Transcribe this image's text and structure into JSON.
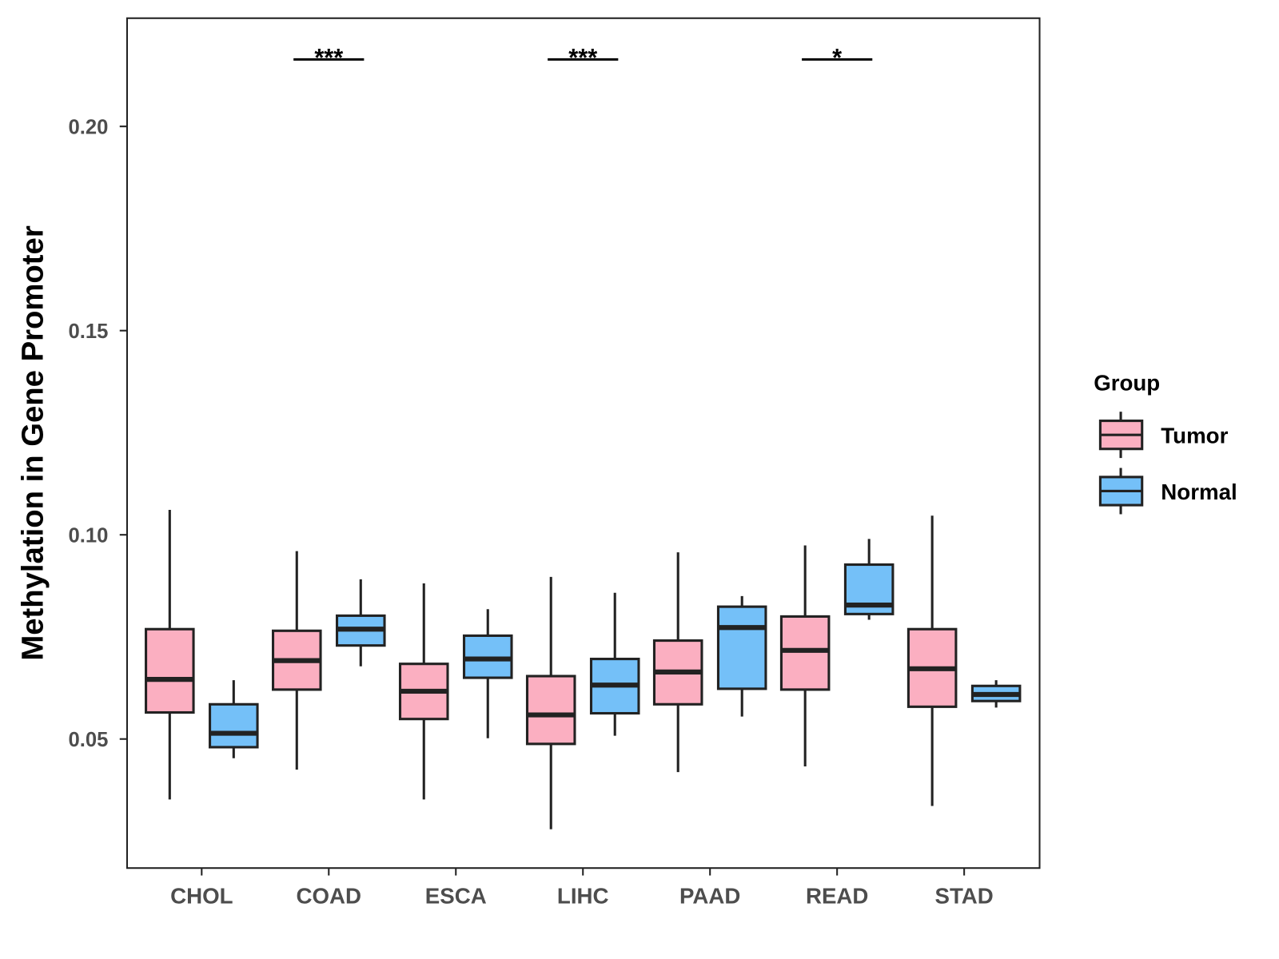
{
  "chart_data": {
    "type": "box",
    "title": "",
    "xlabel": "",
    "ylabel": "Methylation in Gene Promoter",
    "ylim": [
      0.0184,
      0.2265
    ],
    "yticks": [
      0.05,
      0.1,
      0.15,
      0.2
    ],
    "ytick_labels": [
      "0.05",
      "0.10",
      "0.15",
      "0.20"
    ],
    "categories": [
      "CHOL",
      "COAD",
      "ESCA",
      "LIHC",
      "PAAD",
      "READ",
      "STAD"
    ],
    "legend": {
      "title": "Group",
      "placement": "right",
      "entries": [
        "Tumor",
        "Normal"
      ]
    },
    "colors": {
      "Tumor": "#FBAFC1",
      "Normal": "#74C0F8"
    },
    "series": [
      {
        "name": "Tumor",
        "boxes": [
          {
            "min": 0.0352,
            "q1": 0.0565,
            "median": 0.0646,
            "q3": 0.0769,
            "max": 0.1061
          },
          {
            "min": 0.0425,
            "q1": 0.0621,
            "median": 0.0692,
            "q3": 0.0765,
            "max": 0.096
          },
          {
            "min": 0.0352,
            "q1": 0.0549,
            "median": 0.0617,
            "q3": 0.0684,
            "max": 0.0881
          },
          {
            "min": 0.0279,
            "q1": 0.0488,
            "median": 0.0559,
            "q3": 0.0654,
            "max": 0.0897
          },
          {
            "min": 0.0419,
            "q1": 0.0585,
            "median": 0.0664,
            "q3": 0.0741,
            "max": 0.0957
          },
          {
            "min": 0.0433,
            "q1": 0.0621,
            "median": 0.0717,
            "q3": 0.08,
            "max": 0.0974
          },
          {
            "min": 0.0336,
            "q1": 0.0579,
            "median": 0.0672,
            "q3": 0.0769,
            "max": 0.1047
          }
        ]
      },
      {
        "name": "Normal",
        "boxes": [
          {
            "min": 0.0453,
            "q1": 0.048,
            "median": 0.0514,
            "q3": 0.0585,
            "max": 0.0644
          },
          {
            "min": 0.0678,
            "q1": 0.0729,
            "median": 0.0769,
            "q3": 0.0802,
            "max": 0.0891
          },
          {
            "min": 0.0502,
            "q1": 0.065,
            "median": 0.0696,
            "q3": 0.0753,
            "max": 0.0818
          },
          {
            "min": 0.0508,
            "q1": 0.0563,
            "median": 0.0632,
            "q3": 0.0696,
            "max": 0.0858
          },
          {
            "min": 0.0555,
            "q1": 0.0623,
            "median": 0.0773,
            "q3": 0.0824,
            "max": 0.085
          },
          {
            "min": 0.0792,
            "q1": 0.0806,
            "median": 0.0828,
            "q3": 0.0927,
            "max": 0.099
          },
          {
            "min": 0.0577,
            "q1": 0.0593,
            "median": 0.0609,
            "q3": 0.063,
            "max": 0.0644
          }
        ]
      }
    ],
    "annotations": [
      {
        "category": "COAD",
        "label": "***",
        "y": 0.2164
      },
      {
        "category": "LIHC",
        "label": "***",
        "y": 0.2164
      },
      {
        "category": "READ",
        "label": "*",
        "y": 0.2164
      }
    ]
  }
}
